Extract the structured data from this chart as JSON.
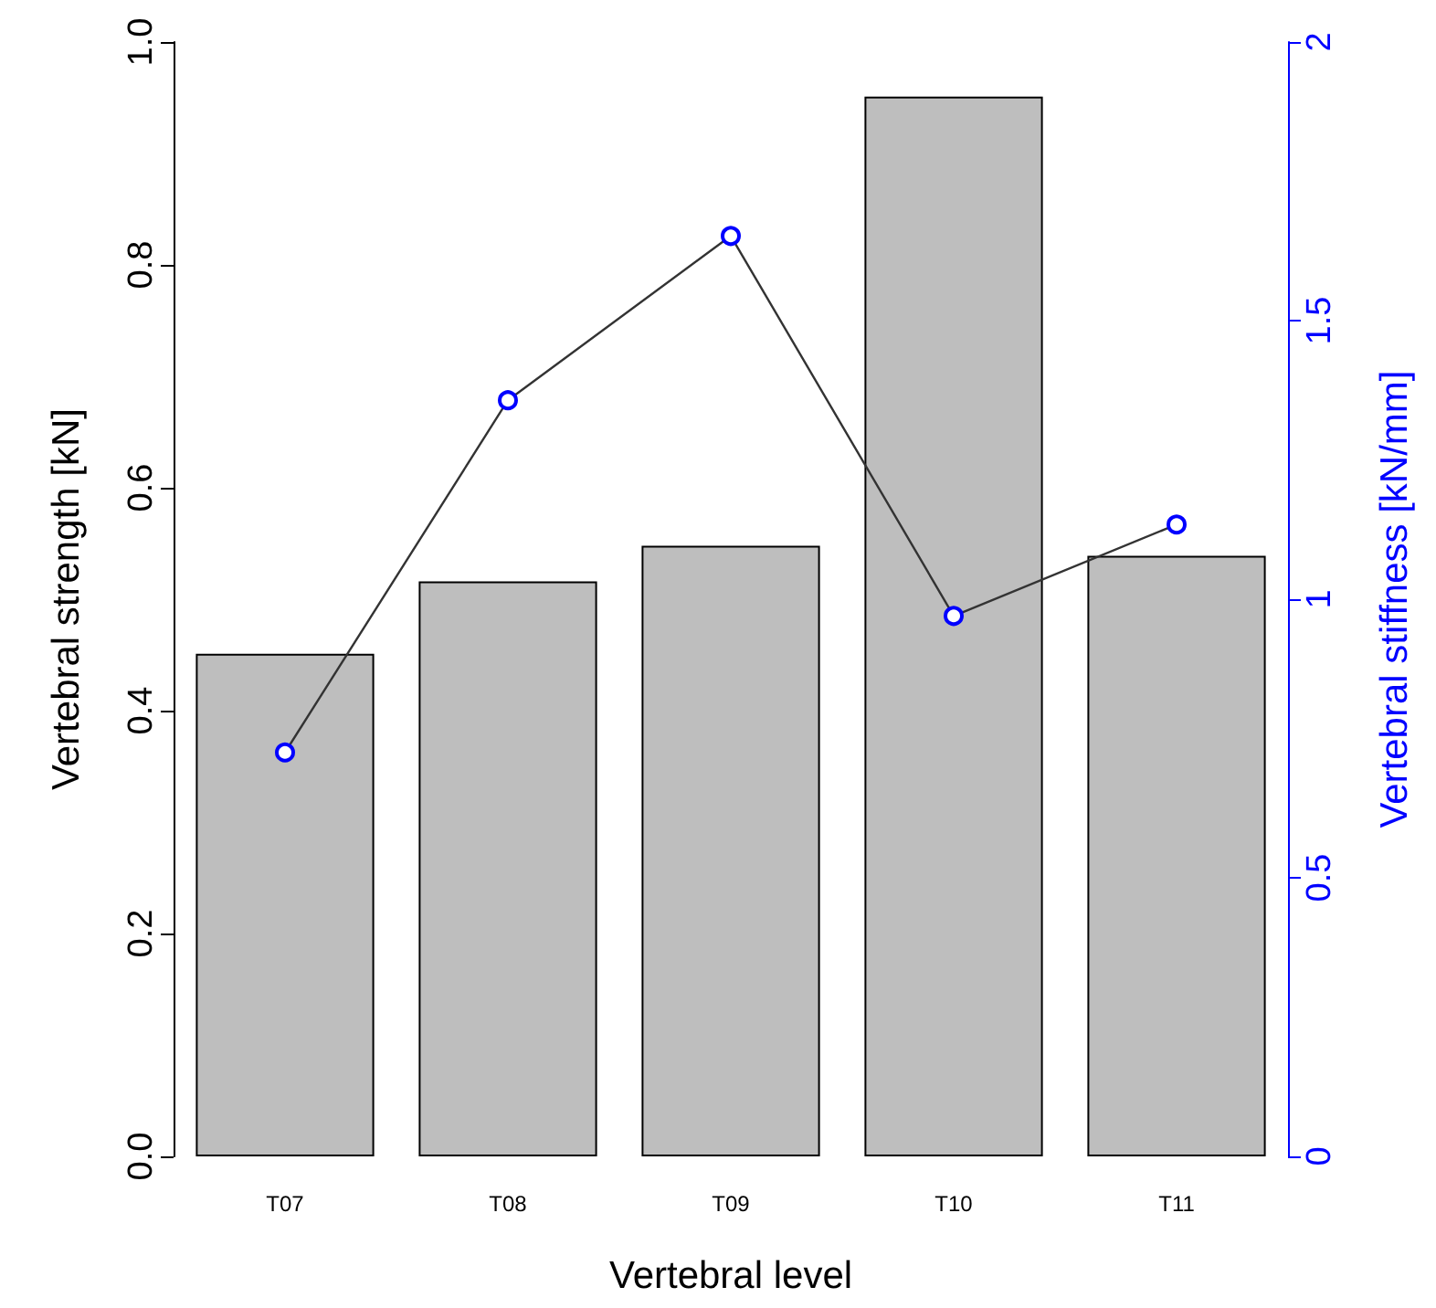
{
  "chart_data": {
    "type": "bar",
    "xlabel": "Vertebral level",
    "ylabel": "Vertebral strength [kN]",
    "y2label": "Vertebral stiffness [kN/mm]",
    "categories": [
      "T07",
      "T08",
      "T09",
      "T10",
      "T11"
    ],
    "series": [
      {
        "color": "#bebebe",
        "values": [
          0.451,
          0.516,
          0.548,
          0.951,
          0.539
        ]
      },
      {
        "type": "line",
        "axis": "y2",
        "color": "#0000ff",
        "marker": "circle",
        "values": [
          0.725,
          1.357,
          1.652,
          0.97,
          1.134
        ]
      }
    ],
    "ylim": [
      0,
      1
    ],
    "yticks": [
      {
        "value": 0,
        "label": "0.0"
      },
      0.2,
      0.4,
      0.6,
      0.8,
      {
        "value": 1,
        "label": "1.0"
      }
    ],
    "y2lim": [
      0,
      2
    ],
    "y2ticks": [
      0,
      0.5,
      1,
      1.5,
      2
    ],
    "grid": false
  }
}
